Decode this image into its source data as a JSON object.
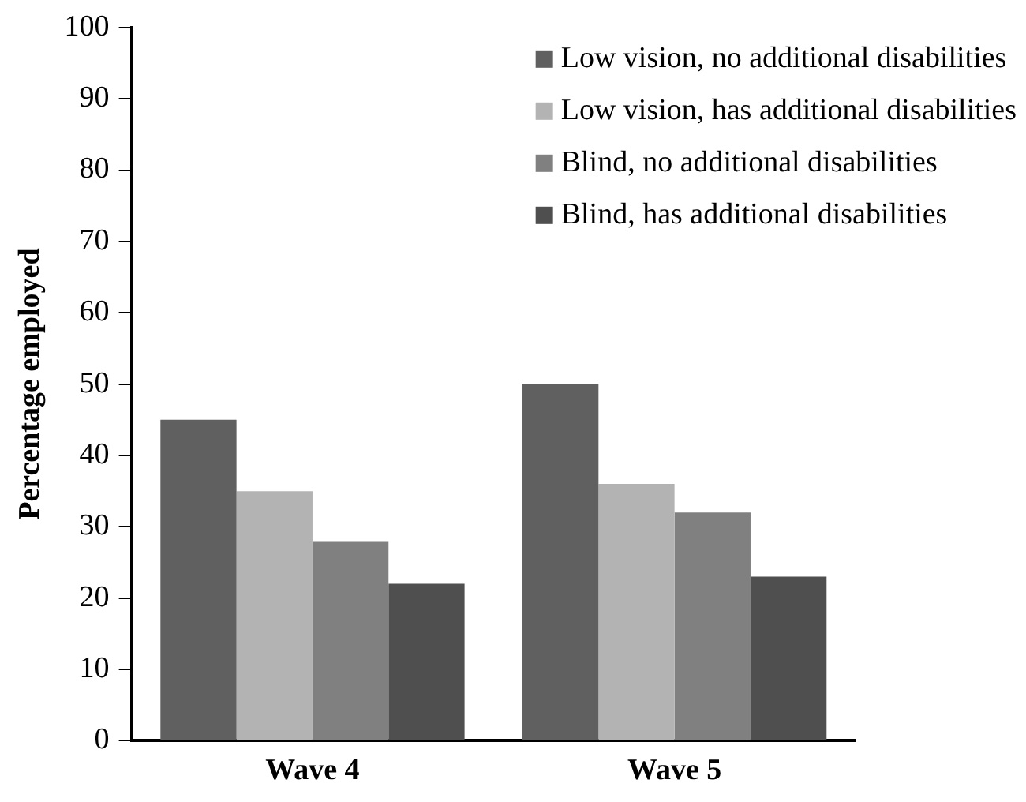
{
  "chart_data": {
    "type": "bar",
    "ylabel": "Percentage employed",
    "categories": [
      "Wave 4",
      "Wave 5"
    ],
    "series": [
      {
        "name": "Low vision, no additional disabilities",
        "color": "#606060",
        "values": [
          45,
          50
        ]
      },
      {
        "name": "Low vision, has additional disabilities",
        "color": "#b3b3b3",
        "values": [
          35,
          36
        ]
      },
      {
        "name": "Blind, no additional disabilities",
        "color": "#808080",
        "values": [
          28,
          32
        ]
      },
      {
        "name": "Blind, has additional disabilities",
        "color": "#4f4f4f",
        "values": [
          22,
          23
        ]
      }
    ],
    "ylim": [
      0,
      100
    ],
    "yticks": [
      0,
      10,
      20,
      30,
      40,
      50,
      60,
      70,
      80,
      90,
      100
    ],
    "grid": false,
    "legend": "top right"
  }
}
